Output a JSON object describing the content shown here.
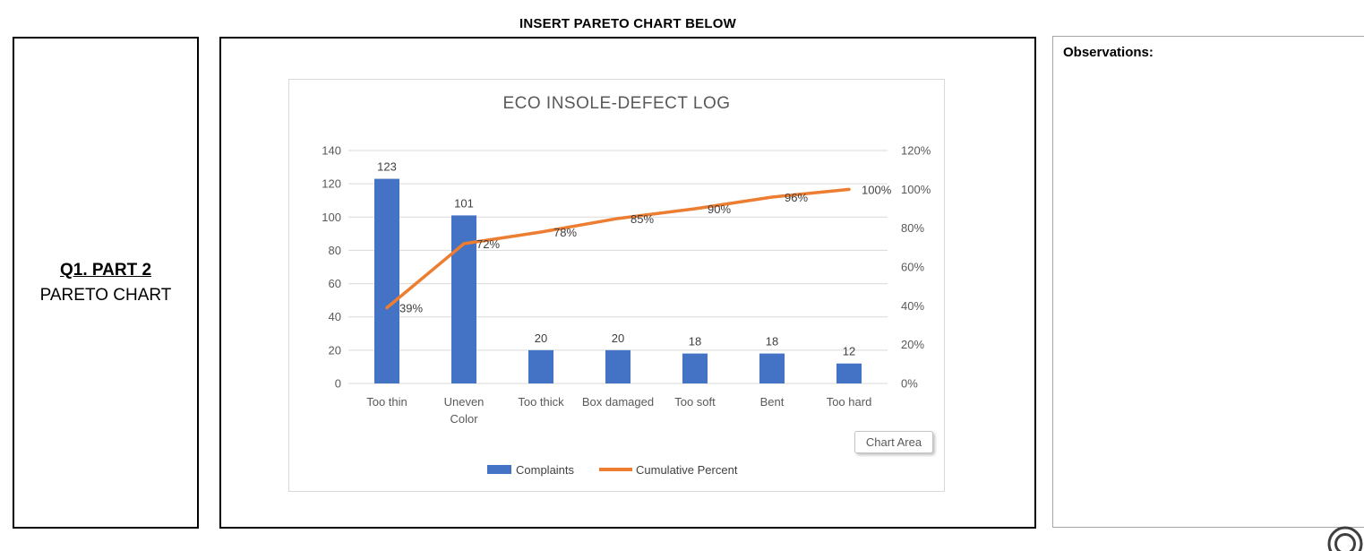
{
  "header": {
    "title": "INSERT PARETO CHART BELOW"
  },
  "left_panel": {
    "title": "Q1. PART 2",
    "subtitle": "PARETO CHART"
  },
  "observations_panel": {
    "title": "Observations:"
  },
  "chart_tooltip": {
    "label": "Chart Area"
  },
  "chart_data": {
    "type": "pareto (bar + line combo)",
    "title": "ECO INSOLE-DEFECT LOG",
    "categories": [
      "Too thin",
      "Uneven Color",
      "Too thick",
      "Box damaged",
      "Too soft",
      "Bent",
      "Too hard"
    ],
    "category_display_lines": [
      [
        "Too thin"
      ],
      [
        "Uneven",
        "Color"
      ],
      [
        "Too thick"
      ],
      [
        "Box damaged"
      ],
      [
        "Too soft"
      ],
      [
        "Bent"
      ],
      [
        "Too hard"
      ]
    ],
    "series": [
      {
        "name": "Complaints",
        "type": "bar",
        "axis": "left",
        "color": "#4472C4",
        "values": [
          123,
          101,
          20,
          20,
          18,
          18,
          12
        ]
      },
      {
        "name": "Cumulative Percent",
        "type": "line",
        "axis": "right",
        "color": "#ED7D31",
        "values": [
          39,
          72,
          78,
          85,
          90,
          96,
          100
        ],
        "point_labels": [
          "39%",
          "72%",
          "78%",
          "85%",
          "90%",
          "96%",
          "100%"
        ]
      }
    ],
    "left_axis": {
      "min": 0,
      "max": 140,
      "step": 20,
      "tick_labels": [
        "0",
        "20",
        "40",
        "60",
        "80",
        "100",
        "120",
        "140"
      ]
    },
    "right_axis": {
      "min": 0,
      "max": 120,
      "step": 20,
      "tick_labels": [
        "0%",
        "20%",
        "40%",
        "60%",
        "80%",
        "100%",
        "120%"
      ]
    },
    "legend": {
      "position": "bottom",
      "entries": [
        {
          "label": "Complaints",
          "swatch": "rect",
          "color": "#4472C4"
        },
        {
          "label": "Cumulative Percent",
          "swatch": "line",
          "color": "#ED7D31"
        }
      ]
    },
    "grid": true,
    "colors": {
      "gridline": "#D9D9D9",
      "axis_text": "#595959",
      "data_label": "#404040",
      "title": "#595959"
    }
  }
}
